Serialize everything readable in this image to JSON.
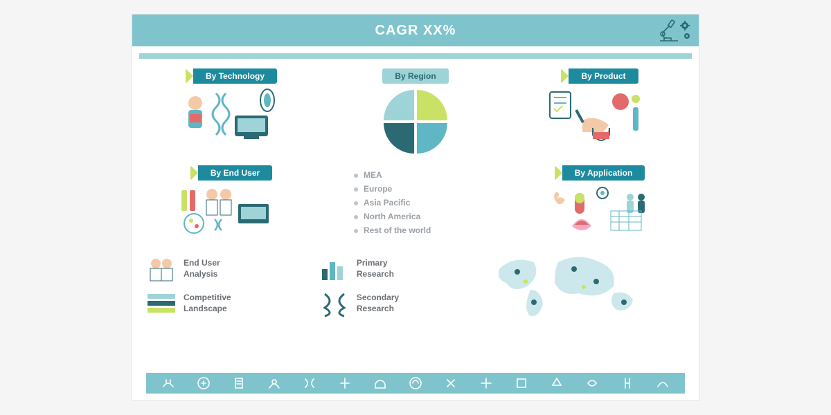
{
  "header": {
    "title": "CAGR XX%"
  },
  "colors": {
    "header_bg": "#7fc4cc",
    "thin_bar": "#9ed3d8",
    "pill_bg": "#1d8a9e",
    "pill_center_bg": "#9ed3d8",
    "accent": "#c9e265",
    "text_muted": "#9aa0a6",
    "text_dark": "#6a6f75",
    "illus_blue": "#5fb6c4",
    "illus_dark": "#2b6a73",
    "illus_red": "#e36a6a"
  },
  "segments": {
    "top_left": {
      "label": "By Technology"
    },
    "top_center": {
      "label": "By Region"
    },
    "top_right": {
      "label": "By Product"
    },
    "mid_left": {
      "label": "By End User"
    },
    "mid_right": {
      "label": "By Application"
    }
  },
  "pie": {
    "slices": [
      {
        "color": "#c9e265",
        "start": 0,
        "end": 90
      },
      {
        "color": "#5fb6c4",
        "start": 90,
        "end": 180
      },
      {
        "color": "#2b6a73",
        "start": 180,
        "end": 270
      },
      {
        "color": "#9ed3d8",
        "start": 270,
        "end": 360
      }
    ],
    "gap": 6
  },
  "regions": [
    "MEA",
    "Europe",
    "Asia Pacific",
    "North America",
    "Rest of the world"
  ],
  "minis": {
    "end_user": {
      "line1": "End User",
      "line2": "Analysis"
    },
    "competitive": {
      "line1": "Competitive",
      "line2": "Landscape"
    },
    "primary": {
      "line1": "Primary",
      "line2": "Research"
    },
    "secondary": {
      "line1": "Secondary",
      "line2": "Research"
    }
  },
  "footer_icon_count": 15
}
